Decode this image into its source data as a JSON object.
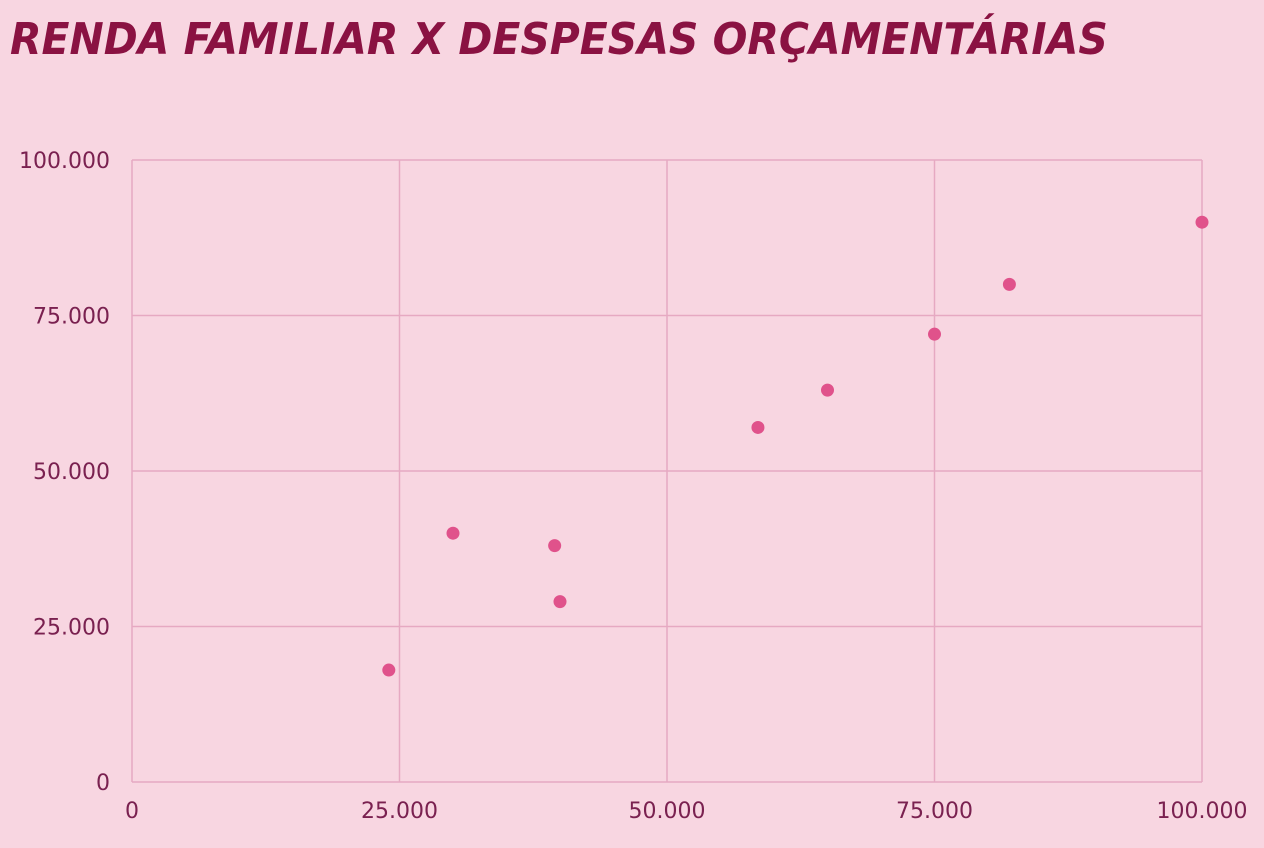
{
  "chart_data": {
    "type": "scatter",
    "title": "RENDA FAMILIAR X DESPESAS ORÇAMENTÁRIAS",
    "xlabel": "",
    "ylabel": "",
    "xlim": [
      0,
      100000
    ],
    "ylim": [
      0,
      100000
    ],
    "x_ticks": [
      0,
      25000,
      50000,
      75000,
      100000
    ],
    "y_ticks": [
      0,
      25000,
      50000,
      75000,
      100000
    ],
    "x_tick_labels": [
      "0",
      "25.000",
      "50.000",
      "75.000",
      "100.000"
    ],
    "y_tick_labels": [
      "0",
      "25.000",
      "50.000",
      "75.000",
      "100.000"
    ],
    "grid": true,
    "points": [
      {
        "x": 24000,
        "y": 18000
      },
      {
        "x": 30000,
        "y": 40000
      },
      {
        "x": 39500,
        "y": 38000
      },
      {
        "x": 40000,
        "y": 29000
      },
      {
        "x": 58500,
        "y": 57000
      },
      {
        "x": 65000,
        "y": 63000
      },
      {
        "x": 75000,
        "y": 72000
      },
      {
        "x": 82000,
        "y": 80000
      },
      {
        "x": 100000,
        "y": 90000
      }
    ],
    "colors": {
      "background": "#f8d6e1",
      "title": "#8a1242",
      "grid": "#e6a9c2",
      "point": "#e0528b",
      "tick_text": "#7a2150"
    }
  }
}
